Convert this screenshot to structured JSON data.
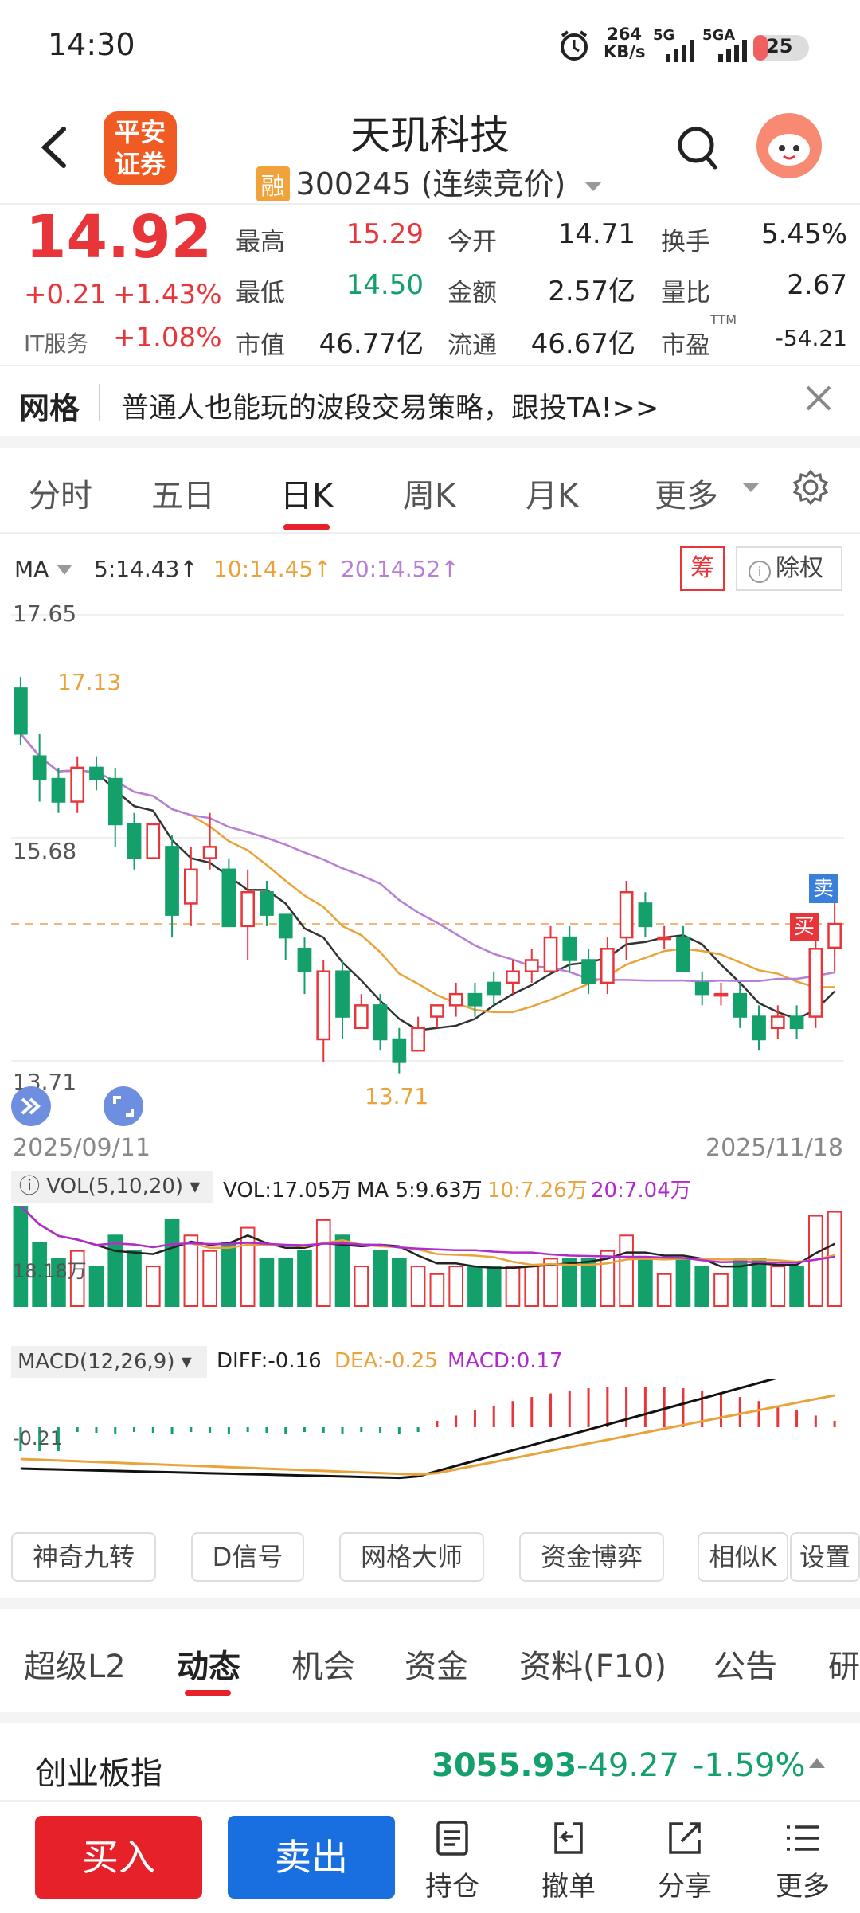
{
  "status_bar": {
    "time": "14:30",
    "net_speed": "264",
    "net_unit": "KB/s",
    "sim1": "5G",
    "sim2": "5GA",
    "battery": "25"
  },
  "header": {
    "logo_text_1": "平安",
    "logo_text_2": "证券",
    "title": "天玑科技",
    "rong": "融",
    "code": "300245 (连续竞价)"
  },
  "quote": {
    "price": "14.92",
    "change": "+0.21",
    "change_pct": "+1.43%",
    "sector": "IT服务",
    "sector_pct": "+1.08%",
    "high_label": "最高",
    "high": "15.29",
    "low_label": "最低",
    "low": "14.50",
    "mktcap_label": "市值",
    "mktcap": "46.77亿",
    "open_label": "今开",
    "open": "14.71",
    "amount_label": "金额",
    "amount": "2.57亿",
    "float_label": "流通",
    "float": "46.67亿",
    "turnover_label": "换手",
    "turnover": "5.45%",
    "vol_ratio_label": "量比",
    "vol_ratio": "2.67",
    "pe_label": "市盈",
    "pe_sup": "TTM",
    "pe": "-54.21"
  },
  "banner": {
    "tag": "网格",
    "text": "普通人也能玩的波段交易策略，跟投TA!>>"
  },
  "chart_tabs": [
    "分时",
    "五日",
    "日K",
    "周K",
    "月K",
    "更多"
  ],
  "ma_bar": {
    "label": "MA",
    "ma5": "5:14.43↑",
    "ma10": "10:14.45↑",
    "ma20": "20:14.52↑",
    "chip": "筹",
    "adjust": "除权"
  },
  "chart_labels": {
    "y_top": "17.65",
    "y_mid": "15.68",
    "y_bot": "13.71",
    "hi_mark": "17.13",
    "lo_mark": "13.71",
    "date_start": "2025/09/11",
    "date_end": "2025/11/18",
    "sell_tag": "卖",
    "buy_tag": "买"
  },
  "vol_bar": {
    "label": "VOL(5,10,20)",
    "vol": "VOL:17.05万",
    "ma5": "MA 5:9.63万",
    "ma10": "10:7.26万",
    "ma20": "20:7.04万",
    "y_mark": "18.18万"
  },
  "macd_bar": {
    "label": "MACD(12,26,9)",
    "diff": "DIFF:-0.16",
    "dea": "DEA:-0.25",
    "macd": "MACD:0.17",
    "y_mark": "-0.21"
  },
  "indicator_buttons": [
    "神奇九转",
    "D信号",
    "网格大师",
    "资金博弈",
    "相似K",
    "设置"
  ],
  "bottom_tabs": [
    "超级L2",
    "动态",
    "机会",
    "资金",
    "资料(F10)",
    "公告",
    "研"
  ],
  "index_row": {
    "name": "创业板指",
    "value": "3055.93",
    "change": "-49.27",
    "pct": "-1.59%"
  },
  "footer": {
    "buy": "买入",
    "sell": "卖出",
    "hold": "持仓",
    "cancel": "撤单",
    "share": "分享",
    "more": "更多"
  },
  "colors": {
    "up": "#e8353a",
    "down": "#14a06a",
    "ma5": "#333333",
    "ma10": "#e9a33a",
    "ma20": "#b67fd6",
    "brand": "#f05a23",
    "buy": "#e62129",
    "sell": "#1a6fe0"
  },
  "chart_data": {
    "type": "candlestick",
    "date_range": [
      "2025/09/11",
      "2025/11/18"
    ],
    "ylim": [
      13.71,
      17.65
    ],
    "candles": [
      [
        17.0,
        16.6,
        17.1,
        16.5
      ],
      [
        16.4,
        16.2,
        16.6,
        16.0
      ],
      [
        16.2,
        16.0,
        16.3,
        15.9
      ],
      [
        16.0,
        16.3,
        16.4,
        15.9
      ],
      [
        16.3,
        16.2,
        16.4,
        16.1
      ],
      [
        16.2,
        15.8,
        16.3,
        15.6
      ],
      [
        15.8,
        15.5,
        15.9,
        15.4
      ],
      [
        15.5,
        15.8,
        15.8,
        15.5
      ],
      [
        15.6,
        15.0,
        15.7,
        14.8
      ],
      [
        15.1,
        15.4,
        15.6,
        14.9
      ],
      [
        15.5,
        15.6,
        15.9,
        15.4
      ],
      [
        15.4,
        14.9,
        15.5,
        14.9
      ],
      [
        14.9,
        15.2,
        15.4,
        14.6
      ],
      [
        15.2,
        15.0,
        15.3,
        14.9
      ],
      [
        15.0,
        14.8,
        15.0,
        14.6
      ],
      [
        14.7,
        14.5,
        14.8,
        14.3
      ],
      [
        13.9,
        14.5,
        14.6,
        13.7
      ],
      [
        14.5,
        14.1,
        14.6,
        13.9
      ],
      [
        14.0,
        14.2,
        14.3,
        14.0
      ],
      [
        14.2,
        13.9,
        14.3,
        13.8
      ],
      [
        13.9,
        13.7,
        14.0,
        13.6
      ],
      [
        13.8,
        14.0,
        14.1,
        13.8
      ],
      [
        14.1,
        14.2,
        14.2,
        14.0
      ],
      [
        14.2,
        14.3,
        14.4,
        14.1
      ],
      [
        14.3,
        14.2,
        14.4,
        14.1
      ],
      [
        14.4,
        14.3,
        14.5,
        14.2
      ],
      [
        14.4,
        14.5,
        14.6,
        14.3
      ],
      [
        14.5,
        14.6,
        14.7,
        14.4
      ],
      [
        14.5,
        14.8,
        14.9,
        14.5
      ],
      [
        14.8,
        14.6,
        14.9,
        14.5
      ],
      [
        14.6,
        14.4,
        14.7,
        14.3
      ],
      [
        14.4,
        14.7,
        14.8,
        14.3
      ],
      [
        14.8,
        15.2,
        15.3,
        14.6
      ],
      [
        15.1,
        14.9,
        15.2,
        14.8
      ],
      [
        14.8,
        14.8,
        14.9,
        14.7
      ],
      [
        14.8,
        14.5,
        14.9,
        14.5
      ],
      [
        14.4,
        14.3,
        14.5,
        14.2
      ],
      [
        14.3,
        14.3,
        14.4,
        14.2
      ],
      [
        14.3,
        14.1,
        14.4,
        14.0
      ],
      [
        14.1,
        13.9,
        14.2,
        13.8
      ],
      [
        14.0,
        14.1,
        14.2,
        13.9
      ],
      [
        14.1,
        14.0,
        14.2,
        13.9
      ],
      [
        14.1,
        14.7,
        15.0,
        14.0
      ],
      [
        14.71,
        14.92,
        15.29,
        14.5
      ]
    ],
    "volume_max": 18.18
  }
}
